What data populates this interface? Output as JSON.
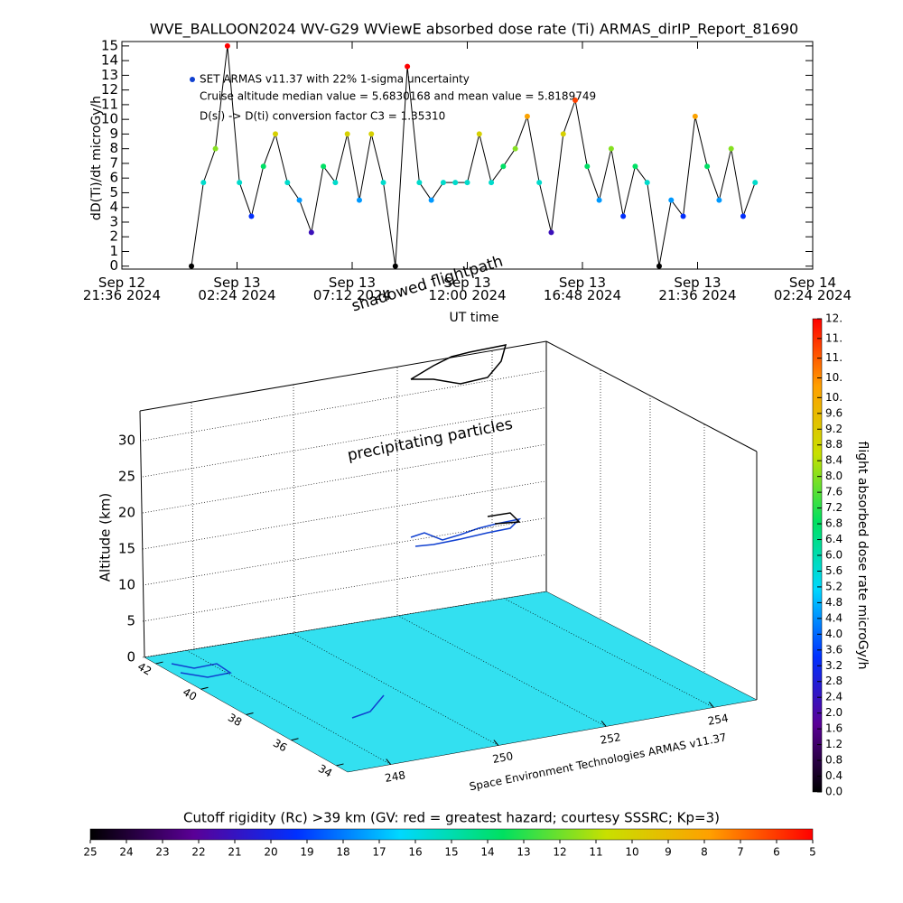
{
  "chart_data": [
    {
      "type": "line",
      "title": "WVE_BALLOON2024 WV-G29 WViewE absorbed dose rate (Ti) ARMAS_dirIP_Report_81690",
      "ylabel": "dD(Ti)/dt microGy/h",
      "xlabel": "UT time",
      "legend": "SET ARMAS v11.37 with 22% 1-sigma uncertainty",
      "legend_color": "#1040d0",
      "annotations": [
        "Cruise altitude median value = 5.6830168 and mean value = 5.8189749",
        "D(si) -> D(ti) conversion factor C3 = 1.35310"
      ],
      "line_color": "#000000",
      "xlim": [
        "2024-09-12T21:36",
        "2024-09-14T02:24"
      ],
      "xticks": [
        {
          "value": "2024-09-12T21:36",
          "label": "Sep 12\n21:36 2024"
        },
        {
          "value": "2024-09-13T02:24",
          "label": "Sep 13\n02:24 2024"
        },
        {
          "value": "2024-09-13T07:12",
          "label": "Sep 13\n07:12 2024"
        },
        {
          "value": "2024-09-13T12:00",
          "label": "Sep 13\n12:00 2024"
        },
        {
          "value": "2024-09-13T16:48",
          "label": "Sep 13\n16:48 2024"
        },
        {
          "value": "2024-09-13T21:36",
          "label": "Sep 13\n21:36 2024"
        },
        {
          "value": "2024-09-14T02:24",
          "label": "Sep 14\n02:24 2024"
        }
      ],
      "ylim": [
        -0.2,
        15.3
      ],
      "yticks": [
        0,
        1,
        2,
        3,
        4,
        5,
        6,
        7,
        8,
        9,
        10,
        11,
        12,
        13,
        14,
        15
      ],
      "x": [
        "2024-09-13T00:30",
        "2024-09-13T01:00",
        "2024-09-13T01:30",
        "2024-09-13T02:00",
        "2024-09-13T02:30",
        "2024-09-13T03:00",
        "2024-09-13T03:30",
        "2024-09-13T04:00",
        "2024-09-13T04:30",
        "2024-09-13T05:00",
        "2024-09-13T05:30",
        "2024-09-13T06:00",
        "2024-09-13T06:30",
        "2024-09-13T07:00",
        "2024-09-13T07:30",
        "2024-09-13T08:00",
        "2024-09-13T08:30",
        "2024-09-13T09:00",
        "2024-09-13T09:30",
        "2024-09-13T10:00",
        "2024-09-13T10:30",
        "2024-09-13T11:00",
        "2024-09-13T11:30",
        "2024-09-13T12:00",
        "2024-09-13T12:30",
        "2024-09-13T13:00",
        "2024-09-13T13:30",
        "2024-09-13T14:00",
        "2024-09-13T14:30",
        "2024-09-13T15:00",
        "2024-09-13T15:30",
        "2024-09-13T16:00",
        "2024-09-13T16:30",
        "2024-09-13T17:00",
        "2024-09-13T17:30",
        "2024-09-13T18:00",
        "2024-09-13T18:30",
        "2024-09-13T19:00",
        "2024-09-13T19:30",
        "2024-09-13T20:00",
        "2024-09-13T20:30",
        "2024-09-13T21:00",
        "2024-09-13T21:30",
        "2024-09-13T22:00",
        "2024-09-13T22:30",
        "2024-09-13T23:00",
        "2024-09-13T23:30",
        "2024-09-14T00:00"
      ],
      "values": [
        0,
        5.7,
        8,
        15,
        5.7,
        3.4,
        6.8,
        9,
        5.7,
        4.5,
        2.3,
        6.8,
        5.7,
        9,
        4.5,
        9,
        5.7,
        0,
        13.6,
        5.7,
        4.5,
        5.7,
        5.7,
        5.7,
        9,
        5.7,
        6.8,
        8,
        10.2,
        5.7,
        2.3,
        9,
        11.3,
        6.8,
        4.5,
        8,
        3.4,
        6.8,
        5.7,
        0,
        4.5,
        3.4,
        10.2,
        6.8,
        4.5,
        8,
        3.4,
        5.7
      ]
    },
    {
      "type": "surface3d",
      "annotations": [
        "shadowed flightpath",
        "precipitating particles",
        "Space Environment Technologies ARMAS v11.37"
      ],
      "zlabel": "Altitude (km)",
      "zlim": [
        0,
        34
      ],
      "zticks": [
        0,
        5,
        10,
        15,
        20,
        25,
        30
      ],
      "ylim": [
        42.5,
        33.5
      ],
      "yticks": [
        42,
        40,
        38,
        36,
        34
      ],
      "xlim": [
        247.2,
        254.8
      ],
      "xticks": [
        248,
        250,
        252,
        254
      ],
      "floor_color": "#33e0f0"
    },
    {
      "type": "colorbar",
      "orientation": "vertical",
      "label": "flight absorbed dose rate microGy/h",
      "colormap": [
        "#000000",
        "#5a0096",
        "#0030ff",
        "#00d8ff",
        "#00e060",
        "#c8e000",
        "#ffa000",
        "#ff0000"
      ],
      "ylim": [
        0,
        12
      ],
      "yticks": [
        {
          "value": 12,
          "label": "12."
        },
        {
          "value": 11.5,
          "label": "11."
        },
        {
          "value": 11,
          "label": "11."
        },
        {
          "value": 10.5,
          "label": "10."
        },
        {
          "value": 10,
          "label": "10."
        },
        9.6,
        9.2,
        8.8,
        8.4,
        {
          "value": 8,
          "label": "8.0"
        },
        7.6,
        7.2,
        6.8,
        6.4,
        {
          "value": 6,
          "label": "6.0"
        },
        5.6,
        5.2,
        4.8,
        4.4,
        {
          "value": 4,
          "label": "4.0"
        },
        3.6,
        3.2,
        2.8,
        2.4,
        {
          "value": 2,
          "label": "2.0"
        },
        1.6,
        1.2,
        0.8,
        0.4,
        {
          "value": 0,
          "label": "0.0"
        }
      ]
    },
    {
      "type": "colorbar",
      "orientation": "horizontal",
      "label": "Cutoff rigidity (Rc) >39 km (GV: red = greatest hazard; courtesy SSSRC; Kp=3)",
      "colormap": [
        "#000000",
        "#5a0096",
        "#0030ff",
        "#00d8ff",
        "#00e060",
        "#c8e000",
        "#ffa000",
        "#ff0000"
      ],
      "xlim": [
        25,
        5
      ],
      "xticks": [
        25,
        24,
        23,
        22,
        21,
        20,
        19,
        18,
        17,
        16,
        15,
        14,
        13,
        12,
        11,
        10,
        9,
        8,
        7,
        6,
        5
      ]
    }
  ]
}
